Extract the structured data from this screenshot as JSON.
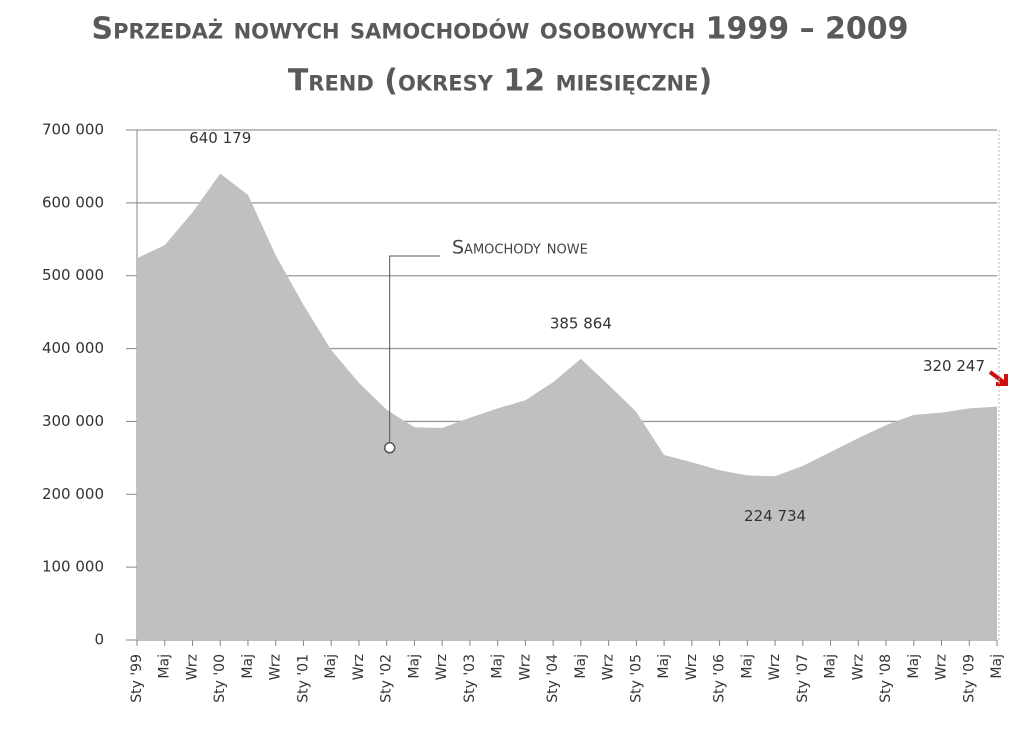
{
  "chart_data": {
    "type": "area",
    "title": "Sprzedaż nowych samochodów osobowych 1999 – 2009",
    "subtitle": "Trend (okresy 12 miesięczne)",
    "categories": [
      "Sty '99",
      "Maj",
      "Wrz",
      "Sty '00",
      "Maj",
      "Wrz",
      "Sty '01",
      "Maj",
      "Wrz",
      "Sty '02",
      "Maj",
      "Wrz",
      "Sty '03",
      "Maj",
      "Wrz",
      "Sty '04",
      "Maj",
      "Wrz",
      "Sty '05",
      "Maj",
      "Wrz",
      "Sty '06",
      "Maj",
      "Wrz",
      "Sty '07",
      "Maj",
      "Wrz",
      "Sty '08",
      "Maj",
      "Wrz",
      "Sty '09",
      "Maj"
    ],
    "series": [
      {
        "name": "Samochody nowe",
        "color": "#c0c0c0",
        "values": [
          524000,
          542000,
          587000,
          640179,
          611000,
          528000,
          460000,
          398000,
          353000,
          316000,
          292000,
          291000,
          305000,
          318000,
          329000,
          354000,
          385864,
          350000,
          313000,
          254000,
          244000,
          233000,
          226000,
          224734,
          239000,
          258000,
          277000,
          295000,
          309000,
          312000,
          318000,
          320247
        ],
        "value_labels": [
          null,
          null,
          null,
          "640 179",
          null,
          null,
          null,
          null,
          null,
          null,
          null,
          null,
          null,
          null,
          null,
          null,
          "385 864",
          null,
          null,
          null,
          null,
          null,
          null,
          "224 734",
          null,
          null,
          null,
          null,
          null,
          null,
          null,
          "320 247"
        ]
      }
    ],
    "ylim": [
      0,
      700000
    ],
    "yticks": [
      0,
      {
        "value": 100000,
        "label": "100 000"
      },
      {
        "value": 200000,
        "label": "200 000"
      },
      {
        "value": 300000,
        "label": "300 000"
      },
      {
        "value": 400000,
        "label": "400 000"
      },
      {
        "value": 500000,
        "label": "500 000"
      },
      {
        "value": 600000,
        "label": "600 000"
      },
      {
        "value": 700000,
        "label": "700 000"
      }
    ],
    "grid": true
  }
}
